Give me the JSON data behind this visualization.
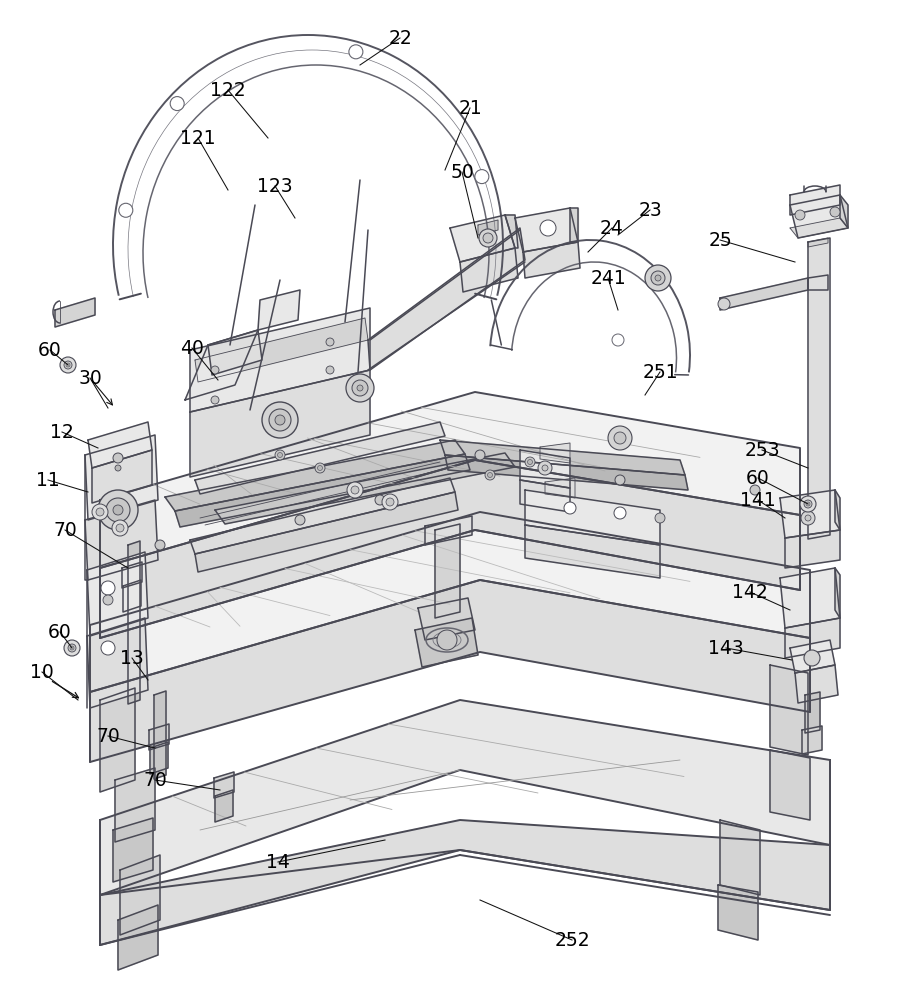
{
  "background_color": "#ffffff",
  "line_color": "#4a4a55",
  "label_fontsize": 13.5,
  "label_color": "#000000",
  "lw_main": 1.1,
  "lw_thin": 0.6,
  "lw_thick": 1.4
}
